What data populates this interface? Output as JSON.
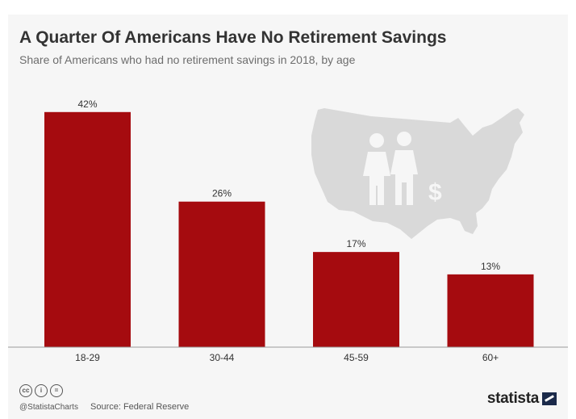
{
  "header": {
    "title": "A Quarter Of Americans Have No Retirement Savings",
    "subtitle": "Share of Americans who had no retirement savings in 2018, by age"
  },
  "chart_data": {
    "type": "bar",
    "categories": [
      "18-29",
      "30-44",
      "45-59",
      "60+"
    ],
    "values": [
      42,
      26,
      17,
      13
    ],
    "value_labels": [
      "42%",
      "26%",
      "17%",
      "13%"
    ],
    "ylim": [
      0,
      45
    ],
    "grid": false,
    "bar_color": "#a50b0f"
  },
  "footer": {
    "handle": "@StatistaCharts",
    "source": "Source: Federal Reserve",
    "brand": "statista",
    "icons": [
      "cc",
      "i",
      "="
    ]
  },
  "colors": {
    "bar": "#a50b0f",
    "map": "#d9d9d9",
    "background": "#f6f6f6"
  },
  "icon_names": [
    "us-map-icon",
    "couple-icon",
    "dollar-icon",
    "creative-commons-icon",
    "attribution-icon",
    "no-derivatives-icon",
    "statista-logo-icon"
  ]
}
